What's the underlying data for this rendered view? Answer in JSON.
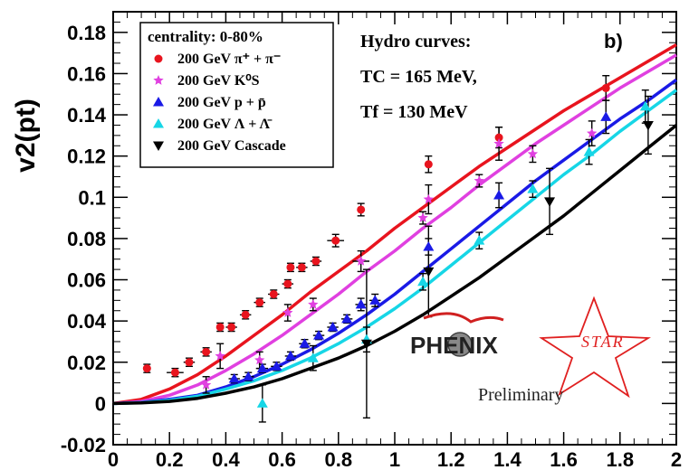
{
  "chart_data": {
    "type": "scatter",
    "panel_label": "b)",
    "ylabel": "v2(pt)",
    "xlabel": "",
    "xlim": [
      0,
      2
    ],
    "ylim": [
      -0.02,
      0.19
    ],
    "x_ticks": [
      "0",
      "0.2",
      "0.4",
      "0.6",
      "0.8",
      "1",
      "1.2",
      "1.4",
      "1.6",
      "1.8",
      "2"
    ],
    "x_tick_values": [
      0,
      0.2,
      0.4,
      0.6,
      0.8,
      1.0,
      1.2,
      1.4,
      1.6,
      1.8,
      2.0
    ],
    "y_ticks": [
      "-0.02",
      "0",
      "0.02",
      "0.04",
      "0.06",
      "0.08",
      "0.1",
      "0.12",
      "0.14",
      "0.16",
      "0.18"
    ],
    "y_tick_values": [
      -0.02,
      0,
      0.02,
      0.04,
      0.06,
      0.08,
      0.1,
      0.12,
      0.14,
      0.16,
      0.18
    ],
    "legend": {
      "title": "centrality: 0-80%",
      "entries": [
        {
          "label": "200 GeV π⁺ + π⁻",
          "color": "#e8141e",
          "marker": "circle"
        },
        {
          "label": "200 GeV K⁰S",
          "color": "#e040e0",
          "marker": "star"
        },
        {
          "label": "200 GeV p + p̄",
          "color": "#1a1ae6",
          "marker": "triangle-up"
        },
        {
          "label": "200 GeV Λ + Λ̄",
          "color": "#16d6e6",
          "marker": "triangle-up"
        },
        {
          "label": "200 GeV Cascade",
          "color": "#000000",
          "marker": "triangle-down"
        }
      ]
    },
    "annotations": {
      "hydro_title": "Hydro curves:",
      "tc": "TC = 165 MeV,",
      "tf": "Tf = 130 MeV"
    },
    "logos": {
      "phenix": "PHENIX",
      "star": "STAR",
      "preliminary": "Preliminary"
    },
    "hydro_curves": [
      {
        "name": "pion",
        "color": "#e8141e",
        "x": [
          0,
          0.1,
          0.2,
          0.3,
          0.4,
          0.5,
          0.6,
          0.7,
          0.8,
          0.9,
          1.0,
          1.1,
          1.2,
          1.3,
          1.4,
          1.5,
          1.6,
          1.7,
          1.8,
          1.9,
          2.0
        ],
        "y": [
          0,
          0.002,
          0.007,
          0.014,
          0.023,
          0.033,
          0.043,
          0.054,
          0.064,
          0.074,
          0.085,
          0.095,
          0.105,
          0.115,
          0.124,
          0.133,
          0.142,
          0.15,
          0.158,
          0.166,
          0.174
        ]
      },
      {
        "name": "kaon",
        "color": "#e040e0",
        "x": [
          0,
          0.1,
          0.2,
          0.3,
          0.4,
          0.5,
          0.6,
          0.7,
          0.8,
          0.9,
          1.0,
          1.1,
          1.2,
          1.3,
          1.4,
          1.5,
          1.6,
          1.7,
          1.8,
          1.9,
          2.0
        ],
        "y": [
          0,
          0.001,
          0.004,
          0.009,
          0.016,
          0.024,
          0.033,
          0.043,
          0.053,
          0.064,
          0.074,
          0.085,
          0.095,
          0.106,
          0.116,
          0.126,
          0.135,
          0.144,
          0.153,
          0.161,
          0.169
        ]
      },
      {
        "name": "proton",
        "color": "#1a1ae6",
        "x": [
          0,
          0.1,
          0.2,
          0.3,
          0.4,
          0.5,
          0.6,
          0.7,
          0.8,
          0.9,
          1.0,
          1.1,
          1.2,
          1.3,
          1.4,
          1.5,
          1.6,
          1.7,
          1.8,
          1.9,
          2.0
        ],
        "y": [
          0,
          0.0005,
          0.002,
          0.004,
          0.008,
          0.013,
          0.019,
          0.026,
          0.034,
          0.043,
          0.053,
          0.064,
          0.075,
          0.086,
          0.097,
          0.108,
          0.118,
          0.128,
          0.138,
          0.147,
          0.157
        ]
      },
      {
        "name": "lambda",
        "color": "#16d6e6",
        "x": [
          0,
          0.1,
          0.2,
          0.3,
          0.4,
          0.5,
          0.6,
          0.7,
          0.8,
          0.9,
          1.0,
          1.1,
          1.2,
          1.3,
          1.4,
          1.5,
          1.6,
          1.7,
          1.8,
          1.9,
          2.0
        ],
        "y": [
          0,
          0.0004,
          0.0015,
          0.0035,
          0.007,
          0.011,
          0.016,
          0.022,
          0.029,
          0.037,
          0.046,
          0.056,
          0.067,
          0.078,
          0.089,
          0.1,
          0.111,
          0.121,
          0.132,
          0.142,
          0.152
        ]
      },
      {
        "name": "cascade",
        "color": "#000000",
        "x": [
          0,
          0.1,
          0.2,
          0.3,
          0.4,
          0.5,
          0.6,
          0.7,
          0.8,
          0.9,
          1.0,
          1.1,
          1.2,
          1.3,
          1.4,
          1.5,
          1.6,
          1.7,
          1.8,
          1.9,
          2.0
        ],
        "y": [
          0,
          0.0003,
          0.001,
          0.0025,
          0.005,
          0.008,
          0.012,
          0.017,
          0.022,
          0.028,
          0.035,
          0.043,
          0.052,
          0.061,
          0.071,
          0.081,
          0.091,
          0.102,
          0.113,
          0.124,
          0.135
        ]
      }
    ],
    "series": [
      {
        "name": "pion",
        "color": "#e8141e",
        "marker": "circle",
        "points": [
          {
            "x": 0.12,
            "y": 0.017,
            "xerr": 0,
            "yerr": 0.002
          },
          {
            "x": 0.22,
            "y": 0.015,
            "xerr": 0.03,
            "yerr": 0.002
          },
          {
            "x": 0.27,
            "y": 0.02,
            "xerr": 0.02,
            "yerr": 0.002
          },
          {
            "x": 0.33,
            "y": 0.025,
            "xerr": 0.02,
            "yerr": 0.002
          },
          {
            "x": 0.38,
            "y": 0.037,
            "xerr": 0,
            "yerr": 0.002
          },
          {
            "x": 0.42,
            "y": 0.037,
            "xerr": 0.02,
            "yerr": 0.002
          },
          {
            "x": 0.47,
            "y": 0.043,
            "xerr": 0.02,
            "yerr": 0.002
          },
          {
            "x": 0.52,
            "y": 0.049,
            "xerr": 0.02,
            "yerr": 0.002
          },
          {
            "x": 0.57,
            "y": 0.053,
            "xerr": 0.02,
            "yerr": 0.002
          },
          {
            "x": 0.62,
            "y": 0.058,
            "xerr": 0.02,
            "yerr": 0.002
          },
          {
            "x": 0.63,
            "y": 0.066,
            "xerr": 0,
            "yerr": 0.002
          },
          {
            "x": 0.67,
            "y": 0.066,
            "xerr": 0.02,
            "yerr": 0.002
          },
          {
            "x": 0.72,
            "y": 0.069,
            "xerr": 0.02,
            "yerr": 0.002
          },
          {
            "x": 0.79,
            "y": 0.079,
            "xerr": 0.03,
            "yerr": 0.003
          },
          {
            "x": 0.88,
            "y": 0.094,
            "xerr": 0,
            "yerr": 0.003
          },
          {
            "x": 1.12,
            "y": 0.116,
            "xerr": 0,
            "yerr": 0.004
          },
          {
            "x": 1.37,
            "y": 0.129,
            "xerr": 0,
            "yerr": 0.005
          },
          {
            "x": 1.75,
            "y": 0.153,
            "xerr": 0,
            "yerr": 0.006
          }
        ]
      },
      {
        "name": "kaon",
        "color": "#e040e0",
        "marker": "star",
        "points": [
          {
            "x": 0.33,
            "y": 0.009,
            "xerr": 0,
            "yerr": 0.004
          },
          {
            "x": 0.38,
            "y": 0.023,
            "xerr": 0,
            "yerr": 0.006
          },
          {
            "x": 0.52,
            "y": 0.021,
            "xerr": 0,
            "yerr": 0.004
          },
          {
            "x": 0.62,
            "y": 0.044,
            "xerr": 0,
            "yerr": 0.004
          },
          {
            "x": 0.71,
            "y": 0.048,
            "xerr": 0,
            "yerr": 0.003
          },
          {
            "x": 0.88,
            "y": 0.069,
            "xerr": 0.03,
            "yerr": 0.005
          },
          {
            "x": 1.1,
            "y": 0.09,
            "xerr": 0,
            "yerr": 0.003
          },
          {
            "x": 1.12,
            "y": 0.099,
            "xerr": 0,
            "yerr": 0.007
          },
          {
            "x": 1.3,
            "y": 0.108,
            "xerr": 0,
            "yerr": 0.003
          },
          {
            "x": 1.37,
            "y": 0.126,
            "xerr": 0,
            "yerr": 0.008
          },
          {
            "x": 1.49,
            "y": 0.121,
            "xerr": 0,
            "yerr": 0.004
          },
          {
            "x": 1.7,
            "y": 0.131,
            "xerr": 0,
            "yerr": 0.006
          }
        ]
      },
      {
        "name": "proton",
        "color": "#1a1ae6",
        "marker": "triangle-up",
        "points": [
          {
            "x": 0.43,
            "y": 0.012,
            "xerr": 0.02,
            "yerr": 0.002
          },
          {
            "x": 0.48,
            "y": 0.013,
            "xerr": 0.02,
            "yerr": 0.002
          },
          {
            "x": 0.53,
            "y": 0.017,
            "xerr": 0.02,
            "yerr": 0.002
          },
          {
            "x": 0.58,
            "y": 0.018,
            "xerr": 0.02,
            "yerr": 0.002
          },
          {
            "x": 0.63,
            "y": 0.023,
            "xerr": 0.02,
            "yerr": 0.002
          },
          {
            "x": 0.68,
            "y": 0.029,
            "xerr": 0.02,
            "yerr": 0.002
          },
          {
            "x": 0.73,
            "y": 0.033,
            "xerr": 0.02,
            "yerr": 0.002
          },
          {
            "x": 0.78,
            "y": 0.037,
            "xerr": 0.02,
            "yerr": 0.002
          },
          {
            "x": 0.83,
            "y": 0.041,
            "xerr": 0.02,
            "yerr": 0.002
          },
          {
            "x": 0.88,
            "y": 0.048,
            "xerr": 0.02,
            "yerr": 0.003
          },
          {
            "x": 0.93,
            "y": 0.05,
            "xerr": 0.02,
            "yerr": 0.003
          },
          {
            "x": 1.12,
            "y": 0.076,
            "xerr": 0,
            "yerr": 0.004
          },
          {
            "x": 1.37,
            "y": 0.101,
            "xerr": 0,
            "yerr": 0.006
          },
          {
            "x": 1.75,
            "y": 0.139,
            "xerr": 0,
            "yerr": 0.008
          }
        ]
      },
      {
        "name": "lambda",
        "color": "#16d6e6",
        "marker": "triangle-up",
        "points": [
          {
            "x": 0.53,
            "y": 0.0,
            "xerr": 0,
            "yerr": 0.009
          },
          {
            "x": 0.71,
            "y": 0.022,
            "xerr": 0,
            "yerr": 0.006
          },
          {
            "x": 0.9,
            "y": 0.031,
            "xerr": 0,
            "yerr": 0.006
          },
          {
            "x": 1.1,
            "y": 0.059,
            "xerr": 0,
            "yerr": 0.004
          },
          {
            "x": 1.3,
            "y": 0.079,
            "xerr": 0,
            "yerr": 0.004
          },
          {
            "x": 1.49,
            "y": 0.104,
            "xerr": 0,
            "yerr": 0.004
          },
          {
            "x": 1.69,
            "y": 0.122,
            "xerr": 0,
            "yerr": 0.006
          },
          {
            "x": 1.89,
            "y": 0.144,
            "xerr": 0,
            "yerr": 0.008
          }
        ]
      },
      {
        "name": "cascade",
        "color": "#000000",
        "marker": "triangle-down",
        "points": [
          {
            "x": 0.9,
            "y": 0.029,
            "xerr": 0,
            "yerr": 0.036
          },
          {
            "x": 1.12,
            "y": 0.064,
            "xerr": 0,
            "yerr": 0.022
          },
          {
            "x": 1.55,
            "y": 0.098,
            "xerr": 0,
            "yerr": 0.016
          },
          {
            "x": 1.9,
            "y": 0.135,
            "xerr": 0,
            "yerr": 0.014
          }
        ]
      }
    ]
  }
}
